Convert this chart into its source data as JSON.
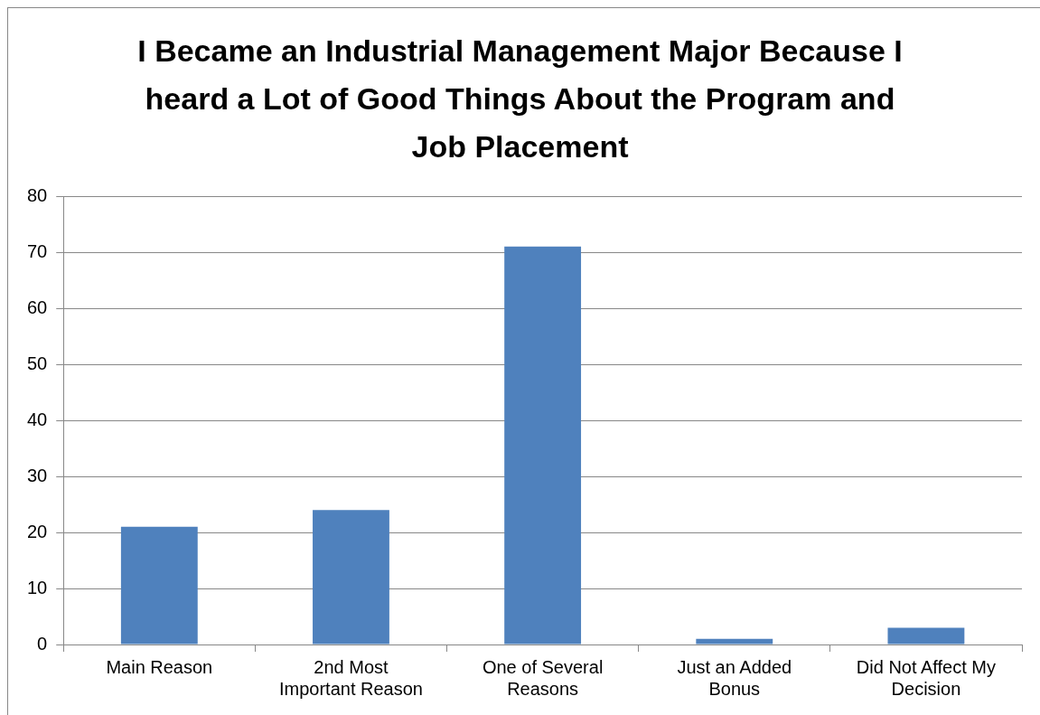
{
  "chart_data": {
    "type": "bar",
    "title": "I Became an Industrial Management Major Because I heard a Lot of Good Things About the Program and Job Placement",
    "categories": [
      "Main Reason",
      "2nd Most Important Reason",
      "One of Several Reasons",
      "Just an Added Bonus",
      "Did Not Affect My Decision"
    ],
    "values": [
      21,
      24,
      71,
      1,
      3
    ],
    "color": "#4f81bd",
    "ylim": [
      0,
      80
    ],
    "yticks": [
      0,
      10,
      20,
      30,
      40,
      50,
      60,
      70,
      80
    ],
    "grid": "y"
  }
}
